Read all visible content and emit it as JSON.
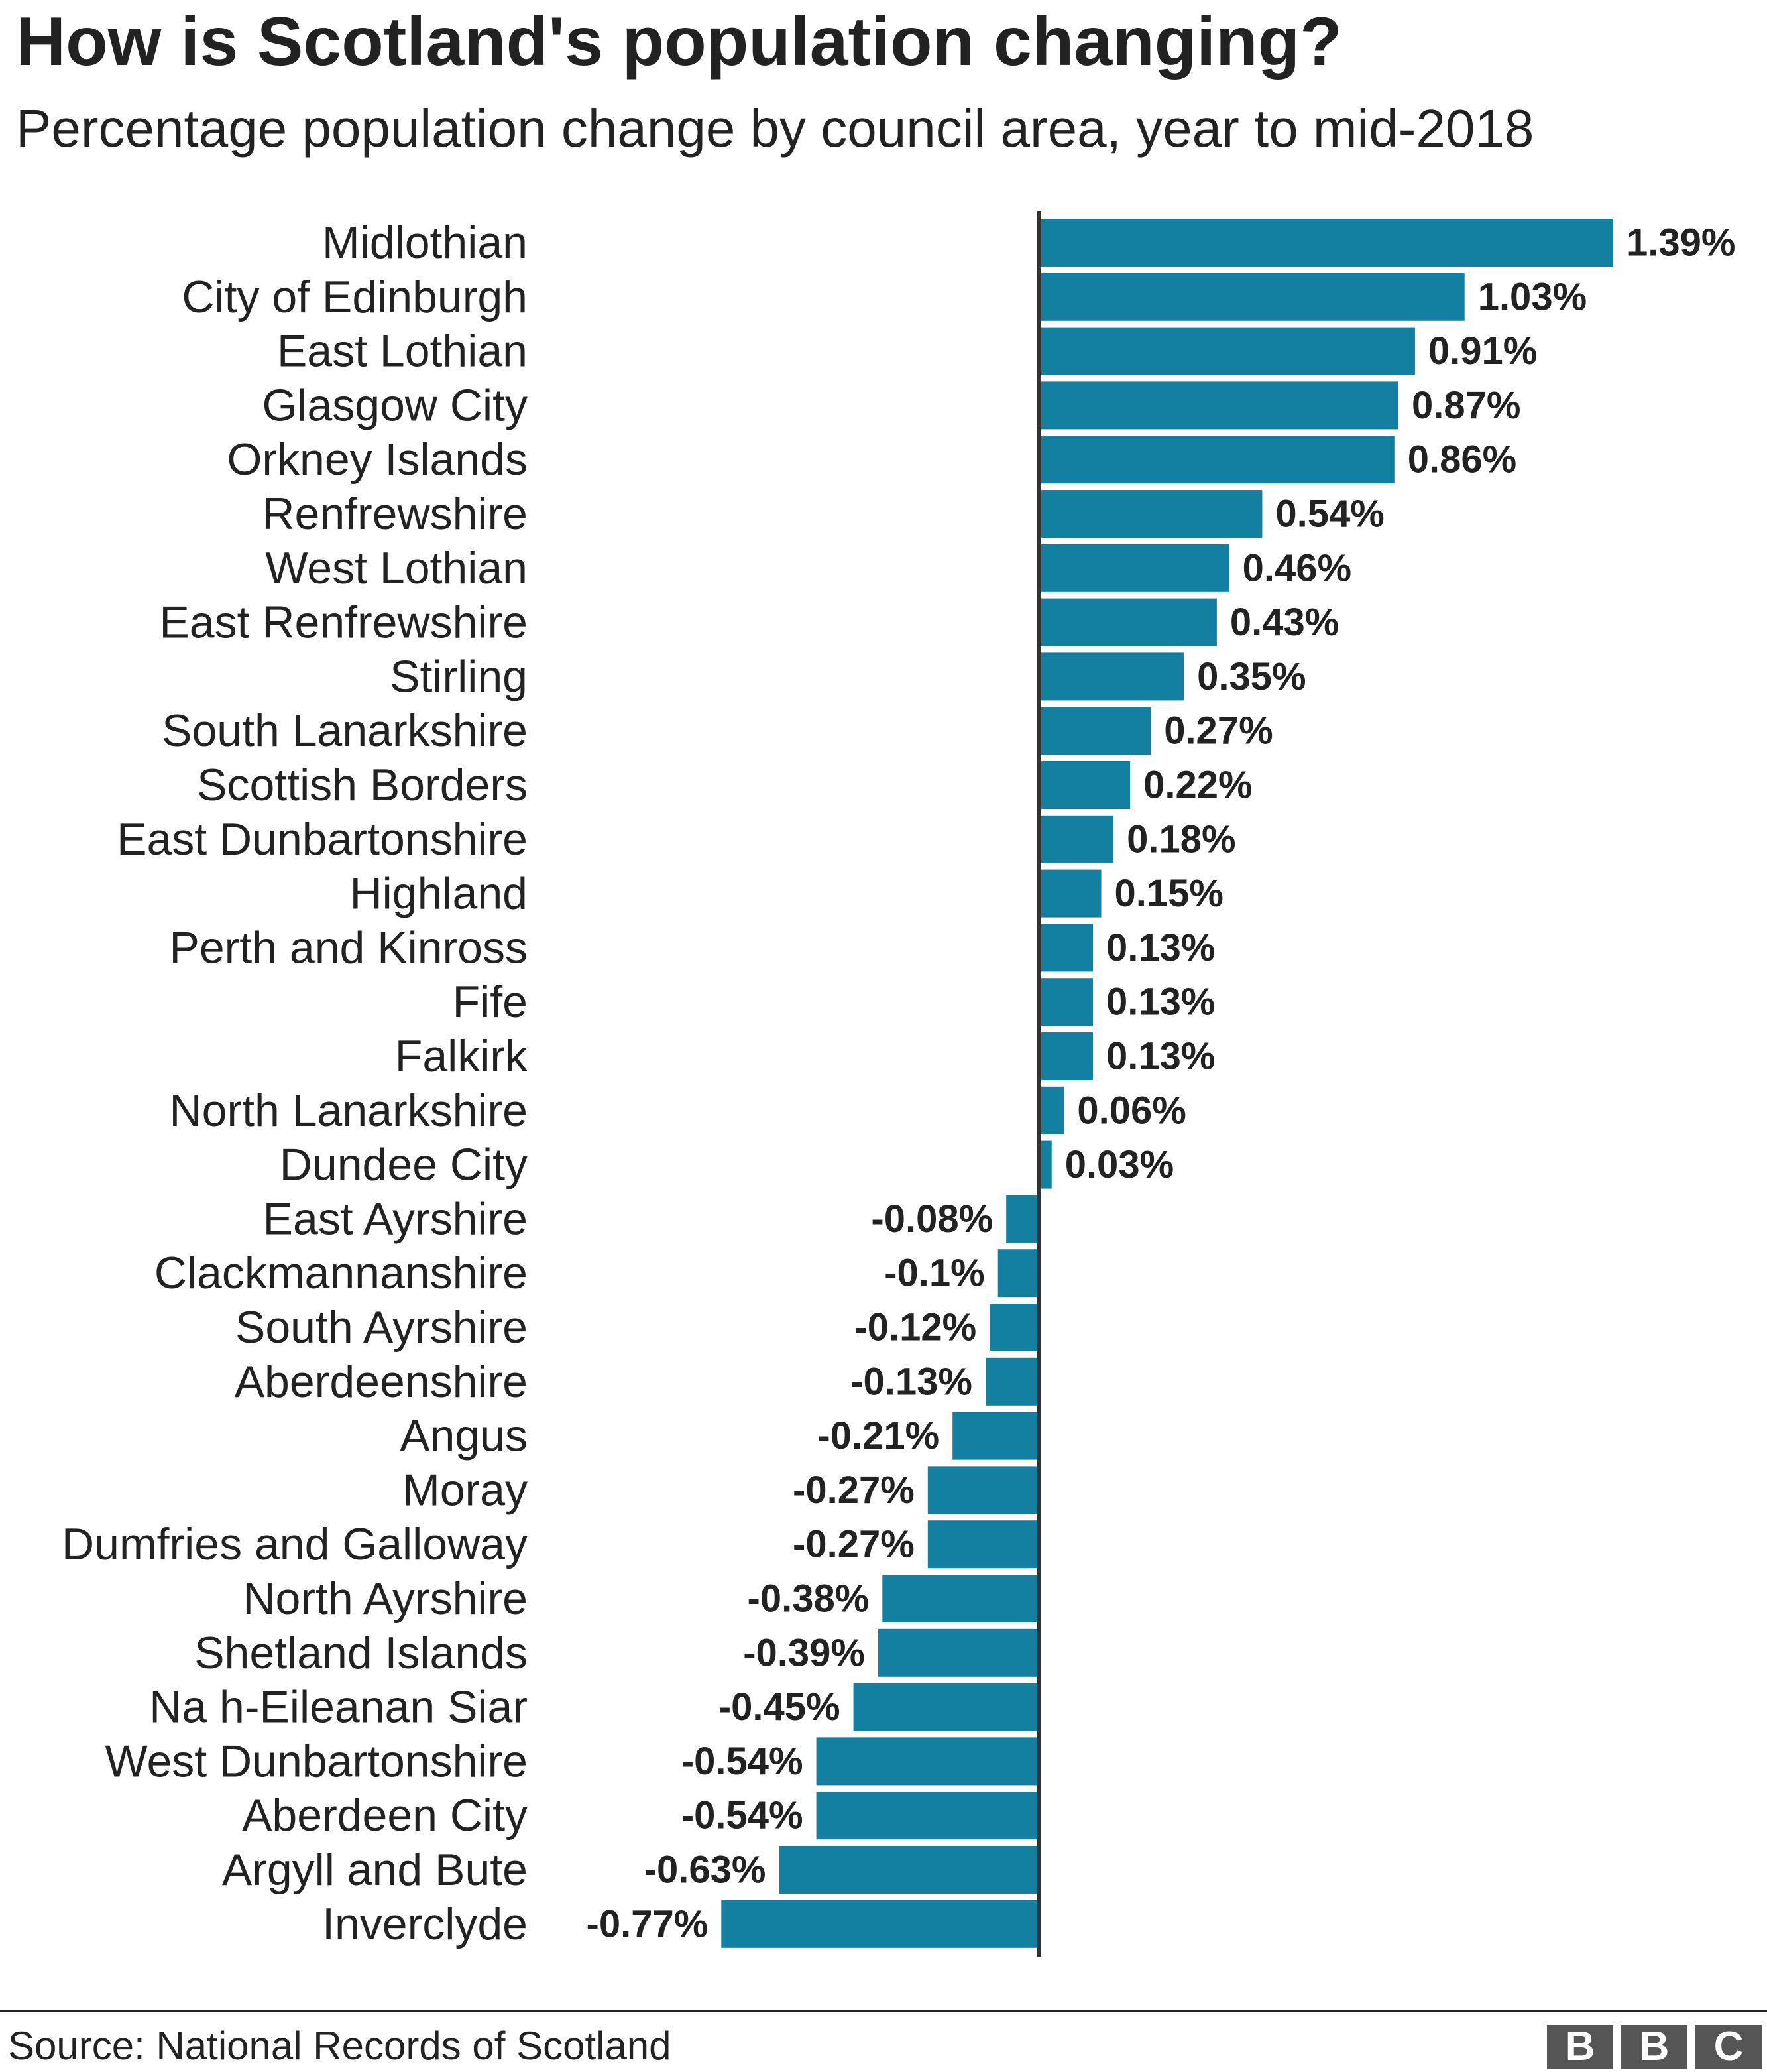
{
  "header": {
    "title": "How is Scotland's population changing?",
    "subtitle": "Percentage population change by council area, year to mid-2018"
  },
  "footer": {
    "source": "Source: National Records of Scotland",
    "logo_letters": [
      "B",
      "B",
      "C"
    ]
  },
  "colors": {
    "bar": "#1380A1",
    "axis": "#333333",
    "text": "#222222"
  },
  "chart_data": {
    "type": "bar",
    "orientation": "horizontal",
    "title": "How is Scotland's population changing?",
    "subtitle": "Percentage population change by council area, year to mid-2018",
    "categories": [
      "Midlothian",
      "City of Edinburgh",
      "East Lothian",
      "Glasgow City",
      "Orkney Islands",
      "Renfrewshire",
      "West Lothian",
      "East Renfrewshire",
      "Stirling",
      "South Lanarkshire",
      "Scottish Borders",
      "East Dunbartonshire",
      "Highland",
      "Perth and Kinross",
      "Fife",
      "Falkirk",
      "North Lanarkshire",
      "Dundee City",
      "East Ayrshire",
      "Clackmannanshire",
      "South Ayrshire",
      "Aberdeenshire",
      "Angus",
      "Moray",
      "Dumfries and Galloway",
      "North Ayrshire",
      "Shetland Islands",
      "Na h-Eileanan Siar",
      "West Dunbartonshire",
      "Aberdeen City",
      "Argyll and Bute",
      "Inverclyde"
    ],
    "values": [
      1.39,
      1.03,
      0.91,
      0.87,
      0.86,
      0.54,
      0.46,
      0.43,
      0.35,
      0.27,
      0.22,
      0.18,
      0.15,
      0.13,
      0.13,
      0.13,
      0.06,
      0.03,
      -0.08,
      -0.1,
      -0.12,
      -0.13,
      -0.21,
      -0.27,
      -0.27,
      -0.38,
      -0.39,
      -0.45,
      -0.54,
      -0.54,
      -0.63,
      -0.77
    ],
    "value_labels": [
      "1.39%",
      "1.03%",
      "0.91%",
      "0.87%",
      "0.86%",
      "0.54%",
      "0.46%",
      "0.43%",
      "0.35%",
      "0.27%",
      "0.22%",
      "0.18%",
      "0.15%",
      "0.13%",
      "0.13%",
      "0.13%",
      "0.06%",
      "0.03%",
      "-0.08%",
      "-0.1%",
      "-0.12%",
      "-0.13%",
      "-0.21%",
      "-0.27%",
      "-0.27%",
      "-0.38%",
      "-0.39%",
      "-0.45%",
      "-0.54%",
      "-0.54%",
      "-0.63%",
      "-0.77%"
    ],
    "xlim": [
      -0.77,
      1.39
    ],
    "grid": false,
    "legend": "none"
  }
}
